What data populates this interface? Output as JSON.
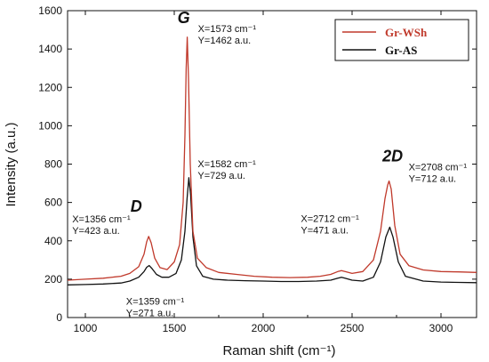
{
  "chart_data": {
    "type": "line",
    "title": "",
    "xlabel": "Raman shift (cm⁻¹)",
    "ylabel": "Intensity (a.u.)",
    "xlim": [
      900,
      3200
    ],
    "ylim": [
      0,
      1600
    ],
    "xticks": [
      1000,
      1500,
      2000,
      2500,
      3000
    ],
    "yticks": [
      0,
      200,
      400,
      600,
      800,
      1000,
      1200,
      1400,
      1600
    ],
    "grid": false,
    "legend_position": "top-right",
    "series": [
      {
        "name": "Gr-WSh",
        "color": "#c0392b",
        "x": [
          900,
          1000,
          1100,
          1200,
          1250,
          1300,
          1330,
          1345,
          1356,
          1370,
          1390,
          1420,
          1460,
          1500,
          1530,
          1550,
          1560,
          1567,
          1573,
          1580,
          1590,
          1605,
          1630,
          1680,
          1750,
          1850,
          1950,
          2050,
          2150,
          2250,
          2320,
          2380,
          2420,
          2440,
          2460,
          2500,
          2560,
          2620,
          2660,
          2685,
          2700,
          2708,
          2720,
          2740,
          2770,
          2820,
          2900,
          3000,
          3100,
          3200
        ],
        "y": [
          195,
          200,
          205,
          215,
          230,
          265,
          330,
          395,
          423,
          390,
          310,
          260,
          250,
          290,
          380,
          600,
          950,
          1300,
          1462,
          1250,
          800,
          450,
          310,
          260,
          235,
          225,
          215,
          210,
          208,
          210,
          215,
          225,
          240,
          245,
          240,
          230,
          240,
          300,
          450,
          620,
          690,
          712,
          670,
          480,
          330,
          270,
          248,
          240,
          238,
          235
        ]
      },
      {
        "name": "Gr-AS",
        "color": "#111111",
        "x": [
          900,
          1000,
          1100,
          1200,
          1250,
          1300,
          1330,
          1345,
          1359,
          1375,
          1400,
          1430,
          1470,
          1510,
          1540,
          1560,
          1572,
          1582,
          1592,
          1605,
          1625,
          1660,
          1720,
          1800,
          1900,
          2000,
          2100,
          2200,
          2300,
          2380,
          2420,
          2440,
          2460,
          2500,
          2560,
          2620,
          2660,
          2690,
          2712,
          2730,
          2760,
          2800,
          2900,
          3000,
          3100,
          3200
        ],
        "y": [
          170,
          172,
          175,
          180,
          190,
          210,
          240,
          262,
          271,
          255,
          225,
          210,
          210,
          230,
          300,
          450,
          620,
          729,
          640,
          420,
          270,
          215,
          200,
          195,
          192,
          190,
          188,
          188,
          190,
          195,
          205,
          210,
          205,
          195,
          190,
          210,
          290,
          420,
          471,
          420,
          290,
          215,
          190,
          185,
          183,
          182
        ]
      }
    ],
    "annotations": [
      {
        "label": "D",
        "type": "peak",
        "x": 1356,
        "y": 423
      },
      {
        "label": "G",
        "type": "peak",
        "x": 1573,
        "y": 1462
      },
      {
        "label": "2D",
        "type": "peak",
        "x": 2708,
        "y": 712
      },
      {
        "line1": "X=1573 cm⁻¹",
        "line2": "Y=1462 a.u.",
        "x": 1573,
        "y": 1462
      },
      {
        "line1": "X=1582 cm⁻¹",
        "line2": "Y=729 a.u.",
        "x": 1582,
        "y": 729
      },
      {
        "line1": "X=1356 cm⁻¹",
        "line2": "Y=423 a.u.",
        "x": 1356,
        "y": 423
      },
      {
        "line1": "X=1359 cm⁻¹",
        "line2": "Y=271 a.u.",
        "x": 1359,
        "y": 271
      },
      {
        "line1": "X=2712 cm⁻¹",
        "line2": "Y=471 a.u.",
        "x": 2712,
        "y": 471
      },
      {
        "line1": "X=2708 cm⁻¹",
        "line2": "Y=712 a.u.",
        "x": 2708,
        "y": 712
      }
    ]
  }
}
